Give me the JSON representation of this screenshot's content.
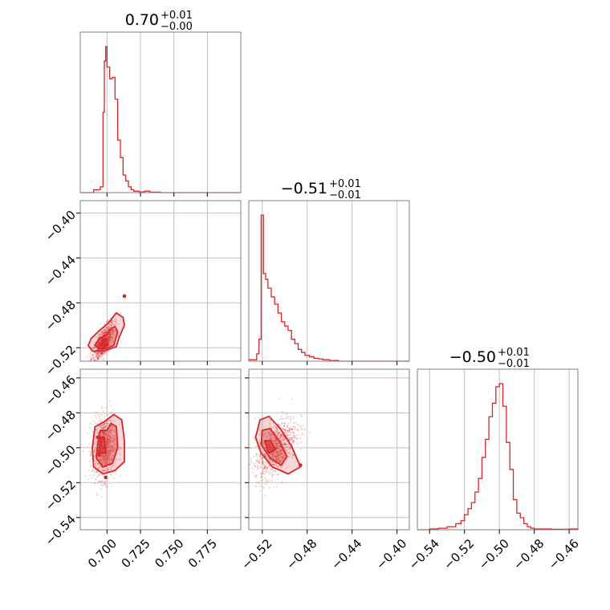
{
  "chart_data": {
    "type": "corner",
    "color": "#d62728",
    "grid": true,
    "parameters": [
      {
        "title": {
          "value": "0.70",
          "plus": "+0.01",
          "minus": "−0.00"
        },
        "range": [
          0.68,
          0.8
        ],
        "ticks": [
          0.7,
          0.725,
          0.75,
          0.775
        ],
        "tick_labels": [
          "0.700",
          "0.725",
          "0.750",
          "0.775"
        ],
        "hist": {
          "edges": [
            0.68,
            0.69,
            0.695,
            0.697,
            0.698,
            0.699,
            0.7,
            0.702,
            0.704,
            0.706,
            0.708,
            0.71,
            0.712,
            0.714,
            0.716,
            0.718,
            0.72,
            0.724,
            0.728,
            0.732,
            0.74,
            0.8
          ],
          "counts": [
            0,
            2,
            4,
            55,
            90,
            100,
            86,
            78,
            79,
            64,
            36,
            24,
            12,
            8,
            4,
            2,
            1,
            0.5,
            1,
            0.3,
            0
          ]
        }
      },
      {
        "title": {
          "value": "−0.51",
          "plus": "+0.01",
          "minus": "−0.01"
        },
        "range": [
          -0.532,
          -0.389
        ],
        "ticks": [
          -0.52,
          -0.48,
          -0.44,
          -0.4
        ],
        "tick_labels": [
          "−0.52",
          "−0.48",
          "−0.44",
          "−0.40"
        ],
        "hist": {
          "edges": [
            -0.532,
            -0.525,
            -0.523,
            -0.521,
            -0.519,
            -0.517,
            -0.515,
            -0.512,
            -0.509,
            -0.506,
            -0.503,
            -0.5,
            -0.497,
            -0.494,
            -0.491,
            -0.488,
            -0.485,
            -0.482,
            -0.478,
            -0.474,
            -0.47,
            -0.466,
            -0.46,
            -0.452,
            -0.389
          ],
          "counts": [
            1,
            5,
            15,
            100,
            60,
            56,
            50,
            44,
            39,
            33,
            27,
            24,
            21,
            15,
            12,
            8,
            6,
            4,
            3,
            2,
            1.5,
            1,
            0.5,
            0
          ]
        }
      },
      {
        "title": {
          "value": "−0.50",
          "plus": "+0.01",
          "minus": "−0.01"
        },
        "range": [
          -0.547,
          -0.455
        ],
        "ticks": [
          -0.54,
          -0.52,
          -0.5,
          -0.48,
          -0.46
        ],
        "tick_labels": [
          "−0.54",
          "−0.52",
          "−0.50",
          "−0.48",
          "−0.46"
        ],
        "hist": {
          "edges": [
            -0.547,
            -0.54,
            -0.535,
            -0.53,
            -0.525,
            -0.522,
            -0.52,
            -0.518,
            -0.516,
            -0.514,
            -0.512,
            -0.51,
            -0.508,
            -0.506,
            -0.504,
            -0.502,
            -0.5,
            -0.498,
            -0.496,
            -0.494,
            -0.492,
            -0.49,
            -0.488,
            -0.486,
            -0.484,
            -0.482,
            -0.48,
            -0.476,
            -0.47,
            -0.46,
            -0.455
          ],
          "counts": [
            0,
            0.5,
            1,
            2,
            4,
            6,
            10,
            14,
            18,
            25,
            34,
            48,
            60,
            75,
            84,
            95,
            97,
            82,
            58,
            40,
            20,
            11,
            8,
            4,
            2,
            1,
            0.5,
            0.5,
            0.3,
            0.5
          ]
        }
      }
    ],
    "pairs": [
      {
        "x_param": 0,
        "y_param": 1,
        "center": [
          0.697,
          -0.516
        ],
        "cov": [
          [
            1.78e-05,
            2.89e-05
          ],
          [
            2.89e-05,
            8.58e-05
          ]
        ],
        "contours": [
          {
            "level": 1,
            "points": [
              [
                0.701,
                -0.517
              ],
              [
                0.699,
                -0.512
              ],
              [
                0.697,
                -0.513
              ],
              [
                0.695,
                -0.518
              ],
              [
                0.698,
                -0.52
              ],
              [
                0.701,
                -0.517
              ]
            ]
          },
          {
            "level": 2,
            "points": [
              [
                0.705,
                -0.518
              ],
              [
                0.708,
                -0.506
              ],
              [
                0.706,
                -0.501
              ],
              [
                0.703,
                -0.503
              ],
              [
                0.699,
                -0.509
              ],
              [
                0.694,
                -0.512
              ],
              [
                0.691,
                -0.518
              ],
              [
                0.694,
                -0.521
              ],
              [
                0.699,
                -0.521
              ],
              [
                0.705,
                -0.518
              ]
            ]
          },
          {
            "level": 3,
            "points": [
              [
                0.709,
                -0.511
              ],
              [
                0.713,
                -0.5
              ],
              [
                0.712,
                -0.493
              ],
              [
                0.707,
                -0.489
              ],
              [
                0.701,
                -0.498
              ],
              [
                0.694,
                -0.505
              ],
              [
                0.688,
                -0.512
              ],
              [
                0.686,
                -0.518
              ],
              [
                0.689,
                -0.523
              ],
              [
                0.698,
                -0.523
              ],
              [
                0.707,
                -0.519
              ],
              [
                0.709,
                -0.511
              ]
            ]
          }
        ],
        "extra_dots": [
          [
            0.713,
            -0.474
          ],
          [
            0.699,
            -0.518
          ]
        ]
      },
      {
        "x_param": 0,
        "y_param": 2,
        "center": [
          0.698,
          -0.5
        ],
        "cov": [
          [
            1.78e-05,
            4e-06
          ],
          [
            4e-06,
            7.84e-05
          ]
        ],
        "contours": [
          {
            "level": 1,
            "points": [
              [
                0.699,
                -0.503
              ],
              [
                0.698,
                -0.494
              ],
              [
                0.695,
                -0.494
              ],
              [
                0.694,
                -0.503
              ],
              [
                0.699,
                -0.503
              ]
            ]
          },
          {
            "level": 2,
            "points": [
              [
                0.708,
                -0.5
              ],
              [
                0.707,
                -0.488
              ],
              [
                0.703,
                -0.486
              ],
              [
                0.7,
                -0.49
              ],
              [
                0.695,
                -0.49
              ],
              [
                0.693,
                -0.498
              ],
              [
                0.692,
                -0.506
              ],
              [
                0.697,
                -0.511
              ],
              [
                0.704,
                -0.509
              ],
              [
                0.708,
                -0.5
              ]
            ]
          },
          {
            "level": 3,
            "points": [
              [
                0.713,
                -0.496
              ],
              [
                0.711,
                -0.484
              ],
              [
                0.705,
                -0.481
              ],
              [
                0.698,
                -0.485
              ],
              [
                0.691,
                -0.488
              ],
              [
                0.689,
                -0.5
              ],
              [
                0.69,
                -0.511
              ],
              [
                0.697,
                -0.515
              ],
              [
                0.706,
                -0.513
              ],
              [
                0.713,
                -0.508
              ],
              [
                0.713,
                -0.496
              ]
            ]
          }
        ],
        "extra_dots": [
          [
            0.693,
            -0.494
          ],
          [
            0.694,
            -0.504
          ],
          [
            0.699,
            -0.517
          ]
        ]
      },
      {
        "x_param": 1,
        "y_param": 2,
        "center": [
          -0.508,
          -0.5
        ],
        "cov": [
          [
            8.58e-05,
            4.5e-05
          ],
          [
            4.5e-05,
            7.84e-05
          ]
        ],
        "contours": [
          {
            "level": 1,
            "points": [
              [
                -0.508,
                -0.501
              ],
              [
                -0.513,
                -0.496
              ],
              [
                -0.518,
                -0.496
              ],
              [
                -0.514,
                -0.503
              ],
              [
                -0.508,
                -0.501
              ]
            ]
          },
          {
            "level": 2,
            "points": [
              [
                -0.498,
                -0.505
              ],
              [
                -0.505,
                -0.496
              ],
              [
                -0.513,
                -0.489
              ],
              [
                -0.52,
                -0.49
              ],
              [
                -0.521,
                -0.498
              ],
              [
                -0.513,
                -0.506
              ],
              [
                -0.503,
                -0.51
              ],
              [
                -0.498,
                -0.505
              ]
            ]
          },
          {
            "level": 3,
            "points": [
              [
                -0.486,
                -0.511
              ],
              [
                -0.494,
                -0.499
              ],
              [
                -0.504,
                -0.489
              ],
              [
                -0.514,
                -0.482
              ],
              [
                -0.522,
                -0.484
              ],
              [
                -0.526,
                -0.494
              ],
              [
                -0.521,
                -0.503
              ],
              [
                -0.511,
                -0.511
              ],
              [
                -0.497,
                -0.515
              ],
              [
                -0.486,
                -0.511
              ]
            ]
          }
        ],
        "extra_dots": [
          [
            -0.486,
            -0.51
          ]
        ]
      }
    ]
  }
}
